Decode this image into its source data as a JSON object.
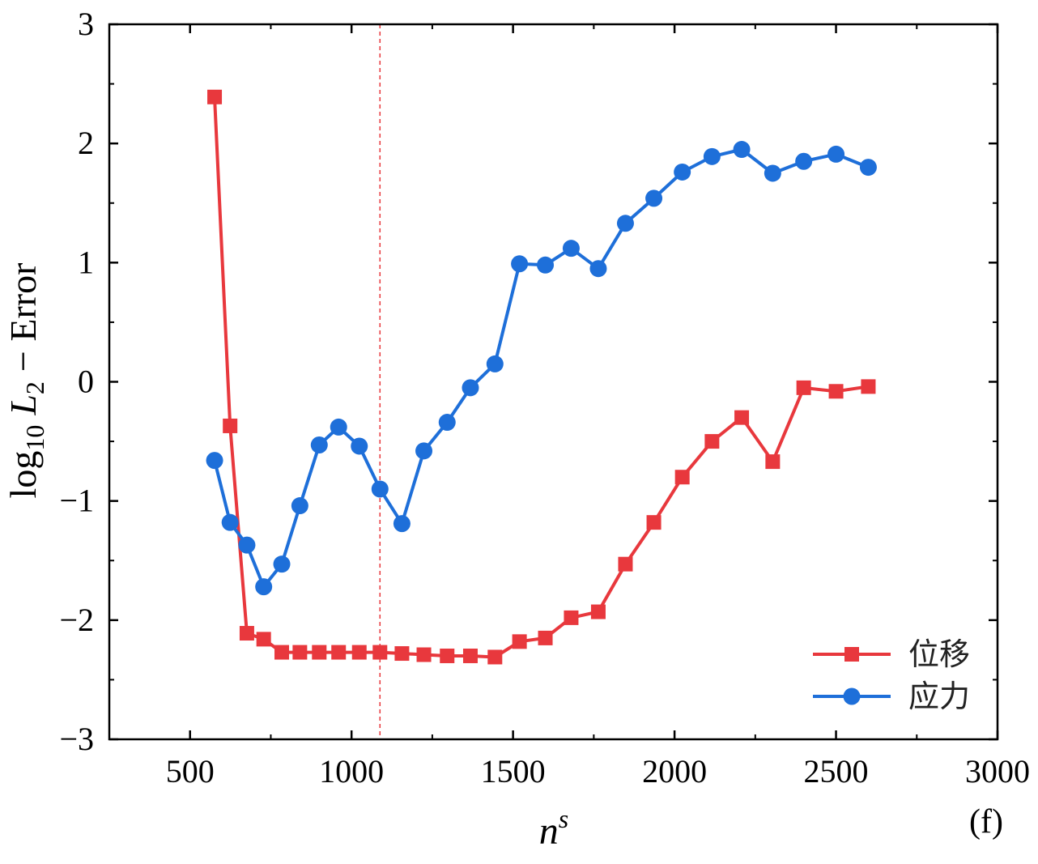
{
  "chart_data": {
    "type": "line",
    "panel_label": "(f)",
    "xlabel": {
      "base": "n",
      "sup": "s"
    },
    "ylabel": {
      "log": "log",
      "log_sub": "10",
      "var": "L",
      "var_sub": "2",
      "rest": "− Error"
    },
    "xlim": [
      250,
      3000
    ],
    "ylim": [
      -3,
      3
    ],
    "xticks": [
      500,
      1000,
      1500,
      2000,
      2500,
      3000
    ],
    "yticks": [
      -3,
      -2,
      -1,
      0,
      1,
      2,
      3
    ],
    "xtick_labels": [
      "500",
      "1000",
      "1500",
      "2000",
      "2500",
      "3000"
    ],
    "ytick_labels": [
      "−3",
      "−2",
      "−1",
      "0",
      "1",
      "2",
      "3"
    ],
    "reference_line": {
      "x": 1088,
      "color": "#e8383d",
      "style": "dashed"
    },
    "legend_position": "bottom-right",
    "grid": false,
    "series": [
      {
        "name": "位移",
        "color": "#e8383d",
        "marker": "square",
        "x": [
          576,
          624,
          676,
          728,
          784,
          840,
          900,
          960,
          1024,
          1088,
          1156,
          1224,
          1296,
          1368,
          1444,
          1520,
          1600,
          1680,
          1764,
          1848,
          1936,
          2024,
          2116,
          2208,
          2304,
          2400,
          2500,
          2600
        ],
        "y": [
          2.39,
          -0.37,
          -2.11,
          -2.16,
          -2.27,
          -2.27,
          -2.27,
          -2.27,
          -2.27,
          -2.27,
          -2.28,
          -2.29,
          -2.3,
          -2.3,
          -2.31,
          -2.18,
          -2.15,
          -1.98,
          -1.93,
          -1.53,
          -1.18,
          -0.8,
          -0.5,
          -0.3,
          -0.67,
          -0.05,
          -0.08,
          -0.04
        ]
      },
      {
        "name": "应力",
        "color": "#1e6fd9",
        "marker": "circle",
        "x": [
          576,
          624,
          676,
          728,
          784,
          840,
          900,
          960,
          1024,
          1088,
          1156,
          1224,
          1296,
          1368,
          1444,
          1520,
          1600,
          1680,
          1764,
          1848,
          1936,
          2024,
          2116,
          2208,
          2304,
          2400,
          2500,
          2600
        ],
        "y": [
          -0.66,
          -1.18,
          -1.37,
          -1.72,
          -1.53,
          -1.04,
          -0.53,
          -0.38,
          -0.54,
          -0.9,
          -1.19,
          -0.58,
          -0.34,
          -0.05,
          0.15,
          0.99,
          0.98,
          1.12,
          0.95,
          1.33,
          1.54,
          1.76,
          1.89,
          1.95,
          1.75,
          1.85,
          1.91,
          1.8
        ]
      }
    ]
  }
}
